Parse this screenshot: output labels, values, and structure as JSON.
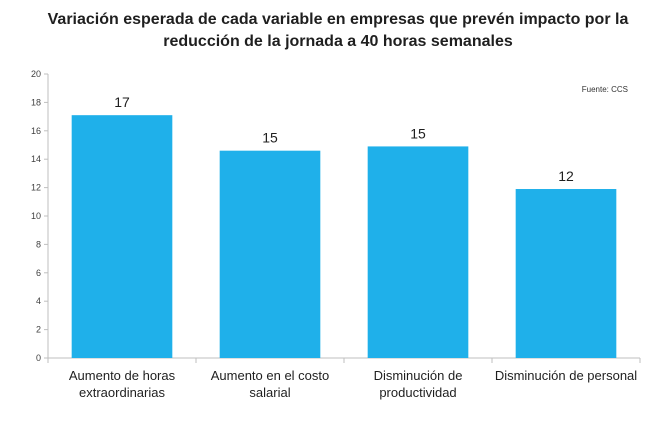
{
  "chart_data": {
    "type": "bar",
    "title_lines": [
      "Variación esperada de cada variable en empresas que prevén impacto por la",
      "reducción de la jornada a 40 horas semanales"
    ],
    "source": "Fuente: CCS",
    "categories": [
      [
        "Aumento de horas",
        "extraordinarias"
      ],
      [
        "Aumento en el costo",
        "salarial"
      ],
      [
        "Disminución de",
        "productividad"
      ],
      [
        "Disminución de personal"
      ]
    ],
    "values": [
      17.1,
      14.6,
      14.9,
      11.9
    ],
    "data_labels": [
      "17",
      "15",
      "15",
      "12"
    ],
    "ylim": [
      0,
      20
    ],
    "yticks": [
      0,
      2,
      4,
      6,
      8,
      10,
      12,
      14,
      16,
      18,
      20
    ],
    "grid": false,
    "colors": {
      "bar": "#1FB0EA",
      "axis": "#bfbfbf"
    }
  }
}
